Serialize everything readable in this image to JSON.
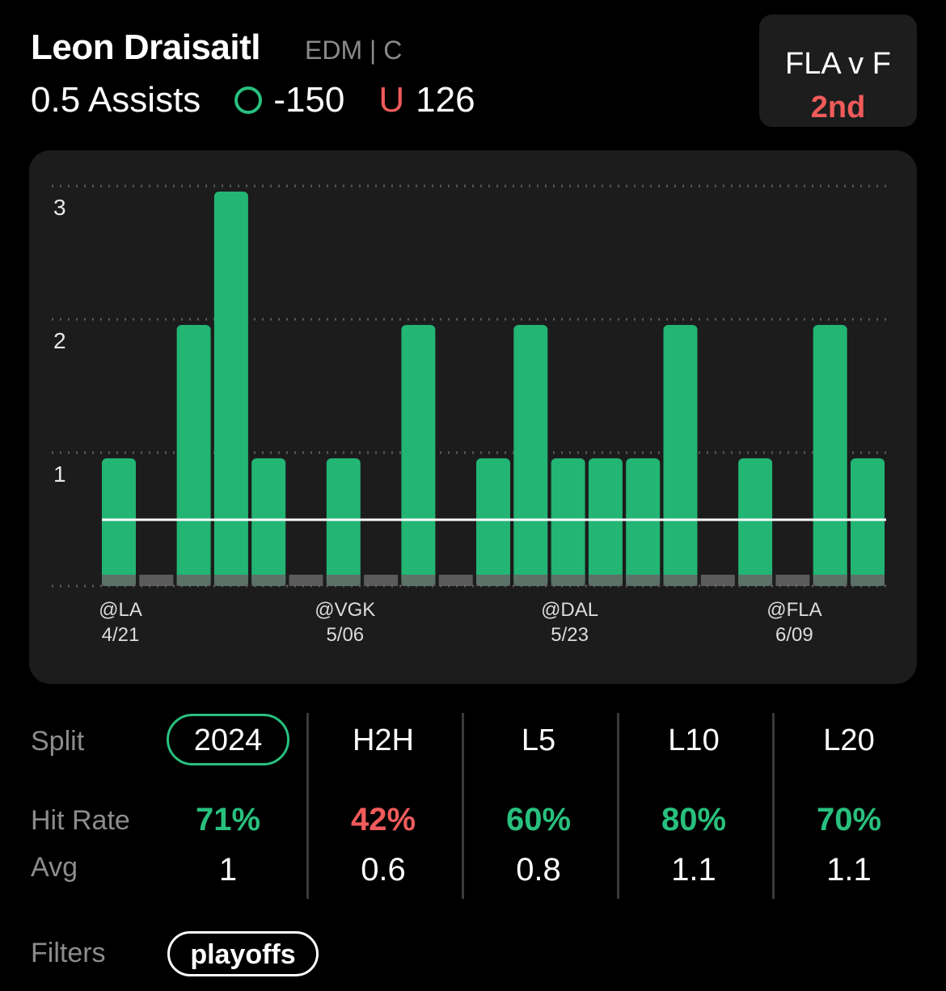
{
  "header": {
    "player_name": "Leon Draisaitl",
    "team_position": "EDM | C",
    "prop_line": "0.5 Assists",
    "over_odds": "-150",
    "under_symbol": "U",
    "under_odds": "126"
  },
  "game": {
    "matchup": "FLA v F",
    "period": "2nd"
  },
  "colors": {
    "accent_green": "#28c07e",
    "accent_red": "#f15b5b",
    "bar_green": "#22b573",
    "bar_gray": "#666666"
  },
  "chart_data": {
    "type": "bar",
    "values": [
      1,
      0,
      2,
      3,
      1,
      0,
      1,
      0,
      2,
      0,
      1,
      2,
      1,
      1,
      1,
      2,
      0,
      1,
      0,
      2,
      1
    ],
    "threshold": 0.5,
    "ylim": [
      0,
      3
    ],
    "yticks": [
      "1",
      "2",
      "3"
    ],
    "xtick_labels": [
      {
        "index": 0,
        "opponent": "@LA",
        "date": "4/21"
      },
      {
        "index": 6,
        "opponent": "@VGK",
        "date": "5/06"
      },
      {
        "index": 12,
        "opponent": "@DAL",
        "date": "5/23"
      },
      {
        "index": 18,
        "opponent": "@FLA",
        "date": "6/09"
      }
    ],
    "grid": true
  },
  "stats": {
    "split_label": "Split",
    "hit_rate_label": "Hit Rate",
    "avg_label": "Avg",
    "columns": [
      {
        "tab": "2024",
        "hit_rate": "71%",
        "hit_color": "#28c07e",
        "avg": "1",
        "active": true
      },
      {
        "tab": "H2H",
        "hit_rate": "42%",
        "hit_color": "#f15b5b",
        "avg": "0.6",
        "active": false
      },
      {
        "tab": "L5",
        "hit_rate": "60%",
        "hit_color": "#28c07e",
        "avg": "0.8",
        "active": false
      },
      {
        "tab": "L10",
        "hit_rate": "80%",
        "hit_color": "#28c07e",
        "avg": "1.1",
        "active": false
      },
      {
        "tab": "L20",
        "hit_rate": "70%",
        "hit_color": "#28c07e",
        "avg": "1.1",
        "active": false
      }
    ]
  },
  "filters": {
    "label": "Filters",
    "chips": [
      "playoffs"
    ]
  }
}
